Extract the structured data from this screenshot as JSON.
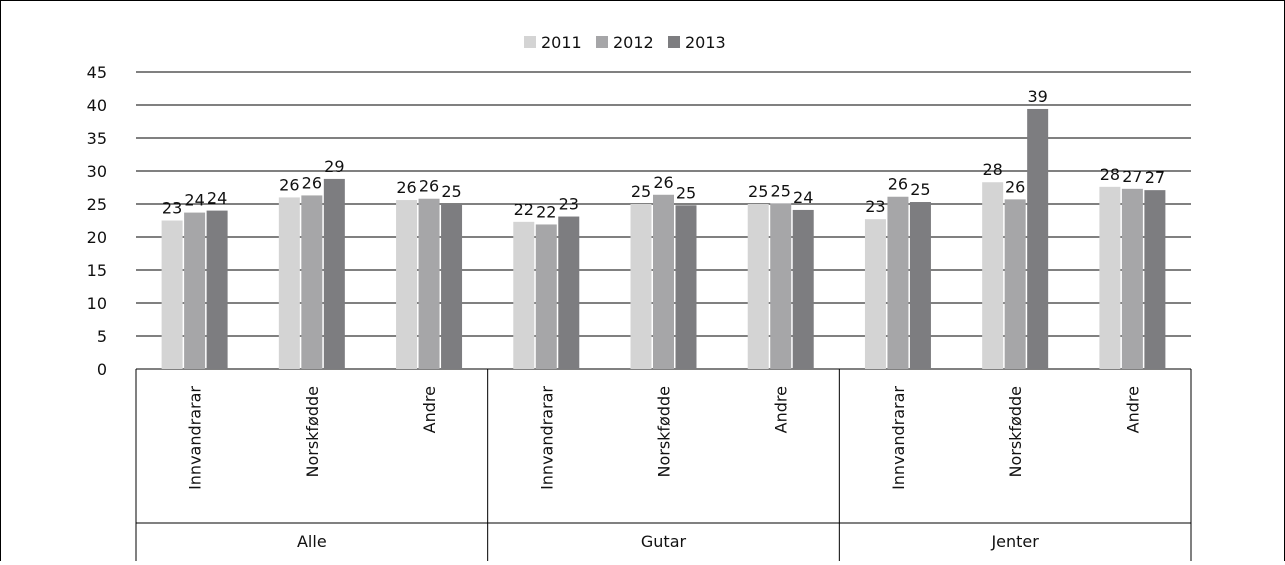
{
  "chart_data": {
    "type": "bar",
    "title": "",
    "xlabel": "",
    "ylabel": "",
    "ylim": [
      0,
      45
    ],
    "yticks": [
      0,
      5,
      10,
      15,
      20,
      25,
      30,
      35,
      40,
      45
    ],
    "grid": true,
    "legend": "top-center",
    "groups": [
      "Alle",
      "Gutar",
      "Jenter"
    ],
    "categories": [
      "Innvandrarar",
      "Norskfødde",
      "Andre",
      "Innvandrarar",
      "Norskfødde",
      "Andre",
      "Innvandrarar",
      "Norskfødde",
      "Andre"
    ],
    "series": [
      {
        "name": "2011",
        "color": "#d4d4d4",
        "values": [
          22.5,
          26.0,
          25.6,
          22.3,
          25.0,
          25.0,
          22.7,
          28.3,
          27.6
        ],
        "labels": [
          "23",
          "26",
          "26",
          "22",
          "25",
          "25",
          "23",
          "28",
          "28"
        ]
      },
      {
        "name": "2012",
        "color": "#a6a6a8",
        "values": [
          23.7,
          26.3,
          25.8,
          21.9,
          26.4,
          25.1,
          26.1,
          25.7,
          27.3
        ],
        "labels": [
          "24",
          "26",
          "26",
          "22",
          "26",
          "25",
          "26",
          "26",
          "27"
        ]
      },
      {
        "name": "2013",
        "color": "#7d7d80",
        "values": [
          24.0,
          28.8,
          25.0,
          23.1,
          24.8,
          24.1,
          25.3,
          39.4,
          27.1
        ],
        "labels": [
          "24",
          "29",
          "25",
          "23",
          "25",
          "24",
          "25",
          "39",
          "27"
        ]
      }
    ]
  }
}
